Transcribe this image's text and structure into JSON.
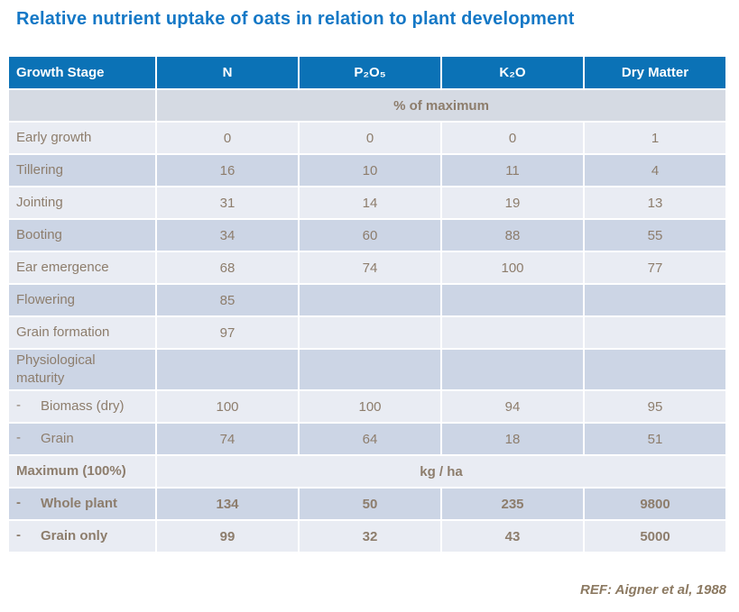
{
  "title": "Relative nutrient uptake of oats in relation to plant development",
  "reference": "REF: Aigner et al, 1988",
  "colors": {
    "title_text": "#1478c6",
    "header_bg": "#0b72b6",
    "header_text": "#ffffff",
    "row_light": "#e9ecf3",
    "row_dark": "#ccd5e5",
    "row_band": "#d5dae3",
    "body_text": "#8d7d6c",
    "reference_text": "#8c7a62"
  },
  "table": {
    "columns": [
      "Growth Stage",
      "N",
      "P₂O₅",
      "K₂O",
      "Dry Matter"
    ],
    "rows": [
      {
        "type": "span",
        "label": "",
        "span_text": "% of maximum",
        "shade": "band",
        "bold": true
      },
      {
        "type": "data",
        "label": "Early growth",
        "values": [
          "0",
          "0",
          "0",
          "1"
        ],
        "shade": "light"
      },
      {
        "type": "data",
        "label": "Tillering",
        "values": [
          "16",
          "10",
          "11",
          "4"
        ],
        "shade": "dark"
      },
      {
        "type": "data",
        "label": "Jointing",
        "values": [
          "31",
          "14",
          "19",
          "13"
        ],
        "shade": "light"
      },
      {
        "type": "data",
        "label": "Booting",
        "values": [
          "34",
          "60",
          "88",
          "55"
        ],
        "shade": "dark"
      },
      {
        "type": "data",
        "label": "Ear emergence",
        "values": [
          "68",
          "74",
          "100",
          "77"
        ],
        "shade": "light"
      },
      {
        "type": "data",
        "label": "Flowering",
        "values": [
          "85",
          "",
          "",
          ""
        ],
        "shade": "dark"
      },
      {
        "type": "data",
        "label": "Grain formation",
        "values": [
          "97",
          "",
          "",
          ""
        ],
        "shade": "light"
      },
      {
        "type": "data",
        "label": "Physiological maturity",
        "values": [
          "",
          "",
          "",
          ""
        ],
        "shade": "dark",
        "wrap": true
      },
      {
        "type": "data",
        "label": "Biomass (dry)",
        "dash": "-",
        "values": [
          "100",
          "100",
          "94",
          "95"
        ],
        "shade": "light"
      },
      {
        "type": "data",
        "label": "Grain",
        "dash": "-",
        "values": [
          "74",
          "64",
          "18",
          "51"
        ],
        "shade": "dark"
      },
      {
        "type": "span",
        "label": "Maximum (100%)",
        "span_text": "kg / ha",
        "shade": "light",
        "bold": true
      },
      {
        "type": "data",
        "label": "Whole plant",
        "dash": "-",
        "values": [
          "134",
          "50",
          "235",
          "9800"
        ],
        "shade": "dark",
        "bold": true
      },
      {
        "type": "data",
        "label": "Grain only",
        "dash": "-",
        "values": [
          "99",
          "32",
          "43",
          "5000"
        ],
        "shade": "light",
        "bold": true
      }
    ]
  }
}
